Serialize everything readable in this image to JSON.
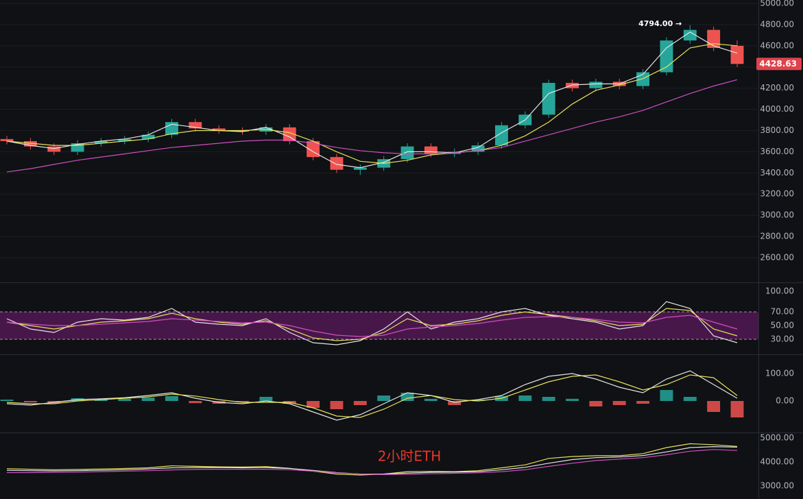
{
  "chart_data": [
    {
      "type": "candlestick",
      "open": [
        3720,
        3700,
        3650,
        3600,
        3680,
        3700,
        3720,
        3760,
        3880,
        3820,
        3800,
        3790,
        3830,
        3700,
        3550,
        3430,
        3450,
        3530,
        3650,
        3580,
        3600,
        3660,
        3850,
        3950,
        4250,
        4200,
        4260,
        4220,
        4350,
        4650,
        4750,
        4600
      ],
      "high": [
        3750,
        3730,
        3680,
        3710,
        3730,
        3750,
        3790,
        3910,
        3910,
        3850,
        3830,
        3860,
        3860,
        3730,
        3580,
        3480,
        3560,
        3680,
        3680,
        3630,
        3690,
        3880,
        3980,
        4280,
        4280,
        4290,
        4290,
        4380,
        4680,
        4794,
        4780,
        4650
      ],
      "low": [
        3670,
        3620,
        3570,
        3570,
        3650,
        3670,
        3690,
        3730,
        3790,
        3770,
        3760,
        3760,
        3670,
        3520,
        3400,
        3380,
        3420,
        3500,
        3550,
        3550,
        3570,
        3630,
        3820,
        3920,
        4170,
        4170,
        4190,
        4190,
        4320,
        4620,
        4550,
        4400
      ],
      "close": [
        3700,
        3650,
        3600,
        3680,
        3700,
        3720,
        3760,
        3880,
        3820,
        3800,
        3790,
        3830,
        3700,
        3550,
        3430,
        3450,
        3530,
        3650,
        3580,
        3600,
        3660,
        3850,
        3950,
        4250,
        4200,
        4260,
        4220,
        4350,
        4650,
        4750,
        4580,
        4428.63
      ],
      "up_color": "#26a69a",
      "down_color": "#ef5350",
      "series": [
        {
          "color": "#e6e6e6",
          "values": [
            3700,
            3660,
            3630,
            3670,
            3700,
            3720,
            3760,
            3860,
            3830,
            3800,
            3790,
            3830,
            3740,
            3600,
            3480,
            3450,
            3500,
            3600,
            3600,
            3590,
            3640,
            3780,
            3900,
            4150,
            4230,
            4240,
            4240,
            4330,
            4580,
            4730,
            4600,
            4530
          ]
        },
        {
          "color": "#e8e25a",
          "values": [
            3700,
            3680,
            3660,
            3660,
            3680,
            3700,
            3720,
            3770,
            3800,
            3800,
            3800,
            3810,
            3780,
            3700,
            3600,
            3510,
            3490,
            3520,
            3570,
            3590,
            3610,
            3660,
            3750,
            3880,
            4050,
            4180,
            4230,
            4290,
            4400,
            4580,
            4620,
            4600
          ]
        },
        {
          "color": "#d04fc4",
          "values": [
            3410,
            3440,
            3480,
            3520,
            3550,
            3580,
            3610,
            3640,
            3660,
            3680,
            3700,
            3710,
            3710,
            3680,
            3640,
            3610,
            3590,
            3580,
            3580,
            3590,
            3610,
            3640,
            3700,
            3760,
            3820,
            3880,
            3930,
            3990,
            4070,
            4150,
            4220,
            4280
          ]
        }
      ],
      "ylim": [
        2380,
        5032
      ],
      "yticks": [
        {
          "value": 2600,
          "label": "2600.00"
        },
        {
          "value": 2800,
          "label": "2800.00"
        },
        {
          "value": 3000,
          "label": "3000.00"
        },
        {
          "value": 3200,
          "label": "3200.00"
        },
        {
          "value": 3400,
          "label": "3400.00"
        },
        {
          "value": 3600,
          "label": "3600.00"
        },
        {
          "value": 3800,
          "label": "3800.00"
        },
        {
          "value": 4000,
          "label": "4000.00"
        },
        {
          "value": 4200,
          "label": "4200.00"
        },
        {
          "value": 4400,
          "label": "4400.00"
        },
        {
          "value": 4600,
          "label": "4600.00"
        },
        {
          "value": 4800,
          "label": "4800.00"
        },
        {
          "value": 5000,
          "label": "5000.00"
        }
      ],
      "high_annotation": "4794.00 →",
      "last_price_label": "4428.63",
      "grid": true
    },
    {
      "type": "line",
      "band": [
        30,
        70
      ],
      "band_color": "#5c1a5c",
      "series": [
        {
          "color": "#e6e6e6",
          "values": [
            60,
            45,
            40,
            55,
            60,
            58,
            62,
            75,
            55,
            52,
            50,
            60,
            40,
            25,
            22,
            28,
            45,
            70,
            45,
            55,
            60,
            70,
            75,
            65,
            60,
            55,
            45,
            50,
            85,
            75,
            35,
            25
          ]
        },
        {
          "color": "#e8e25a",
          "values": [
            55,
            50,
            45,
            50,
            55,
            57,
            60,
            68,
            60,
            55,
            52,
            57,
            45,
            32,
            28,
            30,
            40,
            60,
            50,
            52,
            57,
            65,
            70,
            66,
            62,
            57,
            50,
            52,
            75,
            72,
            45,
            35
          ]
        },
        {
          "color": "#d04fc4",
          "values": [
            55,
            52,
            50,
            50,
            52,
            54,
            56,
            60,
            58,
            56,
            54,
            55,
            50,
            42,
            36,
            34,
            36,
            45,
            48,
            50,
            53,
            58,
            62,
            63,
            62,
            59,
            55,
            54,
            62,
            65,
            55,
            45
          ]
        }
      ],
      "ylim": [
        10,
        110
      ],
      "yticks": [
        {
          "value": 30,
          "label": "30.00"
        },
        {
          "value": 50,
          "label": "50.00"
        },
        {
          "value": 70,
          "label": "70.00"
        },
        {
          "value": 100,
          "label": "100.00"
        }
      ],
      "grid": false
    },
    {
      "type": "bar",
      "values": [
        5,
        -5,
        -8,
        10,
        5,
        8,
        12,
        18,
        -8,
        -10,
        -5,
        15,
        -10,
        -25,
        -30,
        -15,
        20,
        30,
        8,
        -15,
        5,
        18,
        20,
        15,
        8,
        -20,
        -15,
        -10,
        40,
        15,
        -40,
        -60
      ],
      "up_color": "#26a69a",
      "down_color": "#ef5350",
      "series": [
        {
          "color": "#e6e6e6",
          "values": [
            -10,
            -15,
            -5,
            5,
            8,
            12,
            20,
            30,
            10,
            -5,
            -10,
            0,
            -10,
            -40,
            -70,
            -50,
            -10,
            30,
            20,
            -5,
            5,
            20,
            60,
            90,
            100,
            80,
            50,
            30,
            80,
            110,
            60,
            10
          ]
        },
        {
          "color": "#e8e25a",
          "values": [
            -5,
            -10,
            -10,
            0,
            5,
            10,
            15,
            25,
            18,
            5,
            -5,
            -5,
            -5,
            -25,
            -55,
            -60,
            -30,
            10,
            20,
            5,
            0,
            10,
            40,
            70,
            90,
            95,
            70,
            40,
            60,
            95,
            85,
            20
          ]
        }
      ],
      "ylim": [
        -112.5,
        162.5
      ],
      "yticks": [
        {
          "value": 0,
          "label": "0.00"
        },
        {
          "value": 100,
          "label": "100.00"
        }
      ],
      "grid": false
    },
    {
      "type": "line",
      "annotation": "2小时ETH",
      "series": [
        {
          "color": "#e8e25a",
          "values": [
            3720,
            3700,
            3680,
            3690,
            3710,
            3730,
            3760,
            3840,
            3820,
            3800,
            3790,
            3810,
            3740,
            3620,
            3500,
            3460,
            3500,
            3600,
            3610,
            3600,
            3640,
            3760,
            3880,
            4150,
            4230,
            4260,
            4260,
            4350,
            4600,
            4760,
            4720,
            4650
          ]
        },
        {
          "color": "#e6e6e6",
          "values": [
            3650,
            3640,
            3630,
            3640,
            3660,
            3680,
            3710,
            3760,
            3770,
            3770,
            3760,
            3770,
            3730,
            3650,
            3560,
            3500,
            3500,
            3540,
            3570,
            3580,
            3600,
            3680,
            3780,
            3950,
            4100,
            4180,
            4210,
            4270,
            4420,
            4600,
            4640,
            4620
          ]
        },
        {
          "color": "#d04fc4",
          "values": [
            3560,
            3560,
            3570,
            3580,
            3600,
            3620,
            3640,
            3670,
            3690,
            3700,
            3700,
            3700,
            3680,
            3620,
            3550,
            3500,
            3480,
            3490,
            3510,
            3530,
            3550,
            3600,
            3680,
            3820,
            3950,
            4060,
            4120,
            4180,
            4300,
            4450,
            4520,
            4480
          ]
        }
      ],
      "ylim": [
        2460,
        5200
      ],
      "yticks": [
        {
          "value": 3000,
          "label": "3000.00"
        },
        {
          "value": 4000,
          "label": "4000.00"
        },
        {
          "value": 5000,
          "label": "5000.00"
        }
      ],
      "grid": false
    }
  ]
}
